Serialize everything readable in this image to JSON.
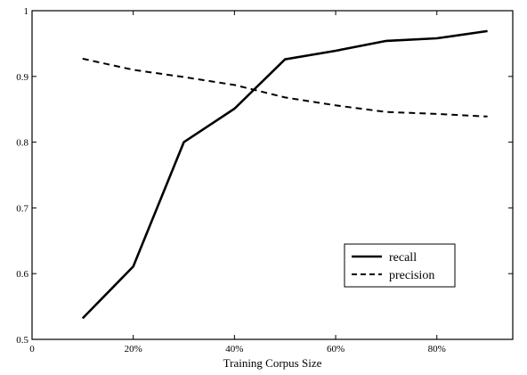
{
  "chart_data": {
    "type": "line",
    "title": "",
    "xlabel": "Training Corpus Size",
    "ylabel": "",
    "xlim": [
      0,
      95
    ],
    "ylim": [
      0.5,
      1.0
    ],
    "x_ticks": [
      {
        "value": 0,
        "label": "0"
      },
      {
        "value": 20,
        "label": "20%"
      },
      {
        "value": 40,
        "label": "40%"
      },
      {
        "value": 60,
        "label": "60%"
      },
      {
        "value": 80,
        "label": "80%"
      }
    ],
    "y_ticks": [
      {
        "value": 0.5,
        "label": "0.5"
      },
      {
        "value": 0.6,
        "label": "0.6"
      },
      {
        "value": 0.7,
        "label": "0.7"
      },
      {
        "value": 0.8,
        "label": "0.8"
      },
      {
        "value": 0.9,
        "label": "0.9"
      },
      {
        "value": 1.0,
        "label": "1"
      }
    ],
    "grid": false,
    "legend_position": "lower-right",
    "series": [
      {
        "name": "recall",
        "style": "solid",
        "color": "#000000",
        "x": [
          10,
          20,
          30,
          40,
          50,
          60,
          70,
          80,
          90
        ],
        "y": [
          0.532,
          0.611,
          0.8,
          0.851,
          0.926,
          0.939,
          0.954,
          0.958,
          0.969
        ]
      },
      {
        "name": "precision",
        "style": "dashed",
        "color": "#000000",
        "x": [
          10,
          20,
          30,
          40,
          50,
          60,
          70,
          80,
          90
        ],
        "y": [
          0.927,
          0.91,
          0.899,
          0.887,
          0.868,
          0.856,
          0.846,
          0.843,
          0.839
        ]
      }
    ]
  }
}
